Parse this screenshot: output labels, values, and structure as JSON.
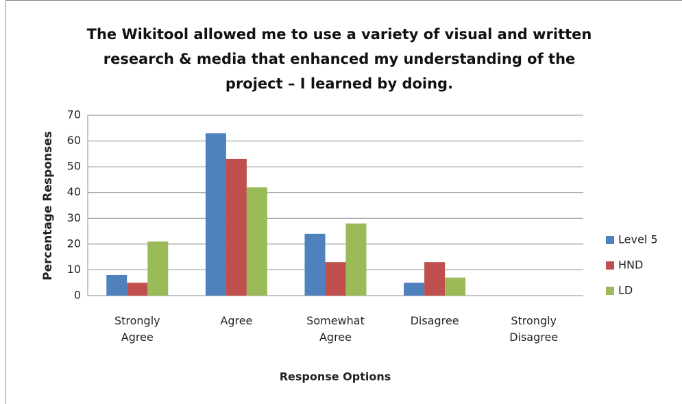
{
  "chart_data": {
    "type": "bar",
    "title": "The Wikitool allowed me to use a variety of visual and written research & media that enhanced my understanding of the project – I learned by doing.",
    "x_label": "Response Options",
    "y_label": "Percentage Responses",
    "categories": [
      "Strongly Agree",
      "Agree",
      "Somewhat Agree",
      "Disagree",
      "Strongly Disagree"
    ],
    "series": [
      {
        "name": "Level 5",
        "color": "#4f81bd",
        "values": [
          8,
          63,
          24,
          5,
          0
        ]
      },
      {
        "name": "HND",
        "color": "#c0504d",
        "values": [
          5,
          53,
          13,
          13,
          0
        ]
      },
      {
        "name": "LD",
        "color": "#9bbb59",
        "values": [
          21,
          42,
          28,
          7,
          0
        ]
      }
    ],
    "ylim": [
      0,
      70
    ],
    "yticks": [
      0,
      10,
      20,
      30,
      40,
      50,
      60,
      70
    ],
    "grid": true,
    "legend": "right"
  }
}
